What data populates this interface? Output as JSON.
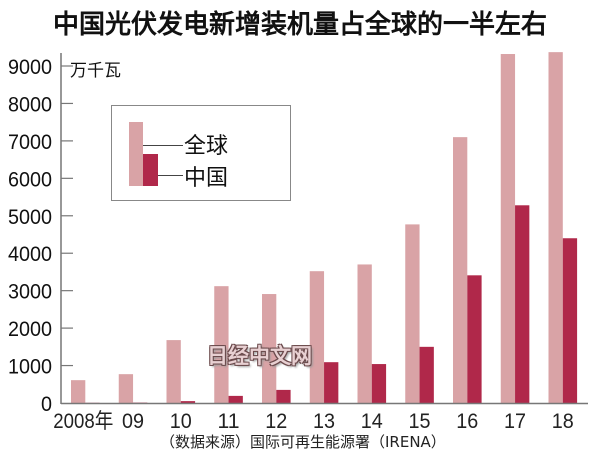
{
  "title": "中国光伏发电新增装机量占全球的一半左右",
  "unit": "万千瓦",
  "source": "（数据来源）国际可再生能源署（IRENA）",
  "watermark": "日经中文网",
  "colors": {
    "global": "#d9a3a6",
    "china": "#b0284a",
    "axis": "#777777"
  },
  "chart_data": {
    "type": "bar",
    "title": "中国光伏发电新增装机量占全球的一半左右",
    "xlabel": "",
    "ylabel": "万千瓦",
    "ylim": [
      0,
      9000
    ],
    "yticks": [
      0,
      1000,
      2000,
      3000,
      4000,
      5000,
      6000,
      7000,
      8000,
      9000
    ],
    "ytick_labels": [
      "0",
      "1000",
      "2000",
      "3000",
      "4000",
      "5000",
      "6000",
      "7000",
      "8000",
      "9000"
    ],
    "categories": [
      "2008年",
      "09",
      "10",
      "11",
      "12",
      "13",
      "14",
      "15",
      "16",
      "17",
      "18"
    ],
    "legend": {
      "position": "top-left",
      "entries": [
        "全球",
        "中国"
      ]
    },
    "grid": false,
    "series": [
      {
        "name": "全球",
        "values": [
          610,
          770,
          1680,
          3120,
          2910,
          3520,
          3700,
          4770,
          7100,
          9320,
          9370
        ]
      },
      {
        "name": "中国",
        "values": [
          5,
          10,
          50,
          190,
          350,
          1090,
          1040,
          1500,
          3410,
          5280,
          4400
        ]
      }
    ]
  }
}
